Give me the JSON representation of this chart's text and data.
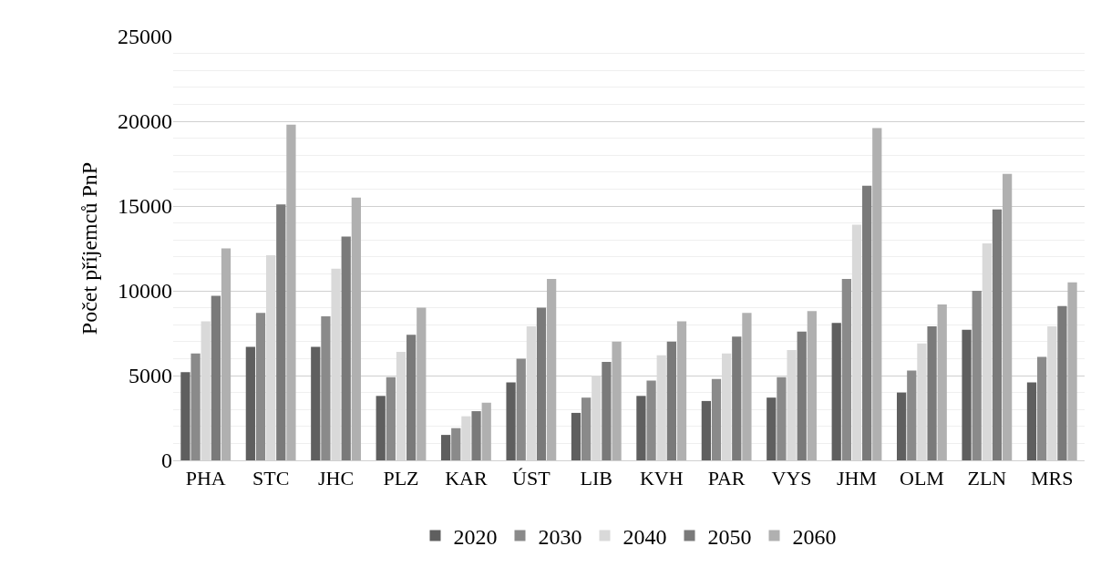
{
  "chart_data": {
    "type": "bar",
    "ylabel": "Počet příjemců PnP",
    "categories": [
      "PHA",
      "STC",
      "JHC",
      "PLZ",
      "KAR",
      "ÚST",
      "LIB",
      "KVH",
      "PAR",
      "VYS",
      "JHM",
      "OLM",
      "ZLN",
      "MRS"
    ],
    "series": [
      {
        "name": "2020",
        "color": "#5f5f5f",
        "values": [
          5200,
          6700,
          6700,
          3800,
          1500,
          4600,
          2800,
          3800,
          3500,
          3700,
          8100,
          4000,
          7700,
          4600
        ]
      },
      {
        "name": "2030",
        "color": "#8a8a8a",
        "values": [
          6300,
          8700,
          8500,
          4900,
          1900,
          6000,
          3700,
          4700,
          4800,
          4900,
          10700,
          5300,
          10000,
          6100
        ]
      },
      {
        "name": "2040",
        "color": "#d9d9d9",
        "values": [
          8200,
          12100,
          11300,
          6400,
          2600,
          7900,
          5000,
          6200,
          6300,
          6500,
          13900,
          6900,
          12800,
          7900
        ]
      },
      {
        "name": "2050",
        "color": "#7a7a7a",
        "values": [
          9700,
          15100,
          13200,
          7400,
          2900,
          9000,
          5800,
          7000,
          7300,
          7600,
          16200,
          7900,
          14800,
          9100
        ]
      },
      {
        "name": "2060",
        "color": "#b0b0b0",
        "values": [
          12500,
          19800,
          15500,
          9000,
          3400,
          10700,
          7000,
          8200,
          8700,
          8800,
          19600,
          9200,
          16900,
          10500
        ]
      }
    ],
    "ylim": [
      0,
      25000
    ],
    "yticks": [
      0,
      {
        "value": 1000,
        "label": null
      },
      {
        "value": 2000,
        "label": null
      },
      {
        "value": 3000,
        "label": null
      },
      {
        "value": 4000,
        "label": null
      },
      5000,
      {
        "value": 6000,
        "label": null
      },
      {
        "value": 7000,
        "label": null
      },
      {
        "value": 8000,
        "label": null
      },
      {
        "value": 9000,
        "label": null
      },
      10000,
      {
        "value": 11000,
        "label": null
      },
      {
        "value": 12000,
        "label": null
      },
      {
        "value": 13000,
        "label": null
      },
      {
        "value": 14000,
        "label": null
      },
      15000,
      {
        "value": 16000,
        "label": null
      },
      {
        "value": 17000,
        "label": null
      },
      {
        "value": 18000,
        "label": null
      },
      {
        "value": 19000,
        "label": null
      },
      20000,
      {
        "value": 21000,
        "label": null
      },
      {
        "value": 22000,
        "label": null
      },
      {
        "value": 23000,
        "label": null
      },
      {
        "value": 24000,
        "label": null
      },
      25000
    ],
    "grid": "y",
    "legend": "bottom"
  }
}
